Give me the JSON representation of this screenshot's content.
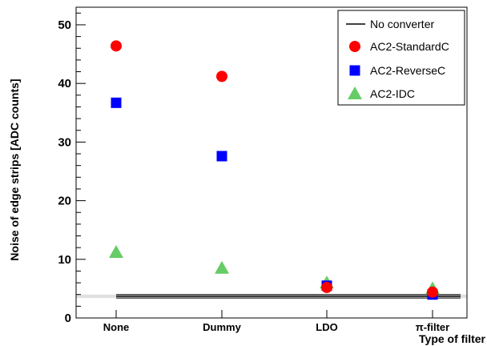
{
  "chart_data": {
    "type": "scatter",
    "title": "",
    "xlabel": "Type of filter",
    "ylabel": "Noise of edge strips [ADC counts]",
    "categories": [
      "None",
      "Dummy",
      "LDO",
      "π-filter"
    ],
    "ylim": [
      0,
      53
    ],
    "yticks": [
      0,
      10,
      20,
      30,
      40,
      50
    ],
    "grid": false,
    "legend_position": "top-right",
    "reference_line": {
      "name": "No converter",
      "value": 3.7,
      "band": [
        3.4,
        4.0
      ],
      "color": "#000000"
    },
    "series": [
      {
        "name": "AC2-StandardC",
        "marker": "circle",
        "color": "#ff0000",
        "values": [
          46.4,
          41.2,
          5.2,
          4.4
        ]
      },
      {
        "name": "AC2-ReverseC",
        "marker": "square",
        "color": "#0000ff",
        "values": [
          36.7,
          27.6,
          5.5,
          4.0
        ]
      },
      {
        "name": "AC2-IDC",
        "marker": "triangle",
        "color": "#66cc66",
        "values": [
          11.2,
          8.5,
          6.0,
          5.0
        ]
      }
    ]
  }
}
